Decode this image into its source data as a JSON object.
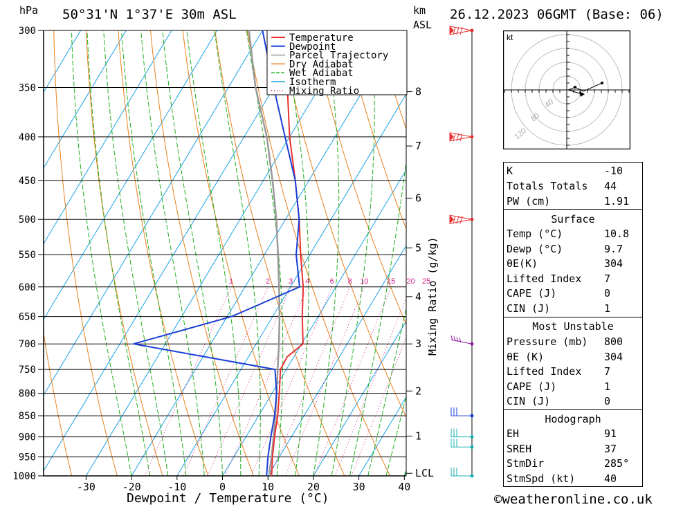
{
  "header": {
    "pressure_unit": "hPa",
    "location": "50°31'N  1°37'E  30m  ASL",
    "km_label": "km",
    "asl_label": "ASL",
    "datetime": "26.12.2023  06GMT  (Base: 06)"
  },
  "footer": {
    "credit": "©weatheronline.co.uk"
  },
  "hodograph": {
    "unit": "kt",
    "ring_labels": [
      "40",
      "80",
      "120"
    ]
  },
  "colors": {
    "temperature": "#e83030",
    "dewpoint": "#1a3fd8",
    "parcel": "#999999",
    "dry_adiabat": "#e8801a",
    "wet_adiabat": "#1fae1f",
    "isotherm": "#1aa0e8",
    "mixing_ratio": "#d0208a",
    "wind_high": "#e83030",
    "wind_mid": "#8a1a9a",
    "wind_low": "#1a3fd8",
    "wind_surface": "#18b0b0"
  },
  "chart_data": {
    "type": "skew-t log-p",
    "xlabel": "Dewpoint / Temperature (°C)",
    "ylabel_left": "hPa",
    "ylabel_right": "Mixing Ratio (g/kg)",
    "pressure_levels": [
      300,
      350,
      400,
      450,
      500,
      550,
      600,
      650,
      700,
      750,
      800,
      850,
      900,
      950,
      1000
    ],
    "temperature_ticks": [
      -30,
      -20,
      -10,
      0,
      10,
      20,
      30,
      40
    ],
    "height_km_ticks": [
      {
        "label": "8",
        "p": 354
      },
      {
        "label": "7",
        "p": 410
      },
      {
        "label": "6",
        "p": 472
      },
      {
        "label": "5",
        "p": 540
      },
      {
        "label": "4",
        "p": 616
      },
      {
        "label": "3",
        "p": 700
      },
      {
        "label": "2",
        "p": 795
      },
      {
        "label": "1",
        "p": 898
      },
      {
        "label": "LCL",
        "p": 993
      }
    ],
    "mixing_ratio_labels": [
      "1",
      "2",
      "3",
      "4",
      "6",
      "8",
      "10",
      "15",
      "20",
      "25"
    ],
    "mixing_ratio_values": [
      1,
      2,
      3,
      4,
      6,
      8,
      10,
      15,
      20,
      25
    ],
    "legend": [
      "Temperature",
      "Dewpoint",
      "Parcel Trajectory",
      "Dry Adiabat",
      "Wet Adiabat",
      "Isotherm",
      "Mixing Ratio"
    ],
    "legend_position": "top-right",
    "series": [
      {
        "name": "Temperature",
        "points": [
          [
            1000,
            10.8
          ],
          [
            950,
            8.5
          ],
          [
            900,
            6.3
          ],
          [
            850,
            4.2
          ],
          [
            800,
            1.6
          ],
          [
            750,
            -1.3
          ],
          [
            725,
            -1.5
          ],
          [
            700,
            0.3
          ],
          [
            650,
            -3.5
          ],
          [
            600,
            -7.2
          ],
          [
            550,
            -12
          ],
          [
            500,
            -17
          ],
          [
            450,
            -23
          ],
          [
            400,
            -30
          ],
          [
            350,
            -37
          ],
          [
            300,
            -45
          ]
        ]
      },
      {
        "name": "Dewpoint",
        "points": [
          [
            1000,
            9.7
          ],
          [
            950,
            7.5
          ],
          [
            900,
            5.5
          ],
          [
            850,
            3.5
          ],
          [
            800,
            1.0
          ],
          [
            750,
            -2.5
          ],
          [
            700,
            -37
          ],
          [
            650,
            -19
          ],
          [
            600,
            -8
          ],
          [
            550,
            -13
          ],
          [
            500,
            -17
          ],
          [
            450,
            -23
          ],
          [
            400,
            -31
          ],
          [
            350,
            -40
          ],
          [
            300,
            -50
          ]
        ]
      },
      {
        "name": "Parcel Trajectory",
        "points": [
          [
            1000,
            10.8
          ],
          [
            990,
            9.8
          ],
          [
            950,
            8.3
          ],
          [
            900,
            6.1
          ],
          [
            850,
            3.7
          ],
          [
            800,
            1.0
          ],
          [
            750,
            -1.9
          ],
          [
            700,
            -5
          ],
          [
            650,
            -8.5
          ],
          [
            600,
            -12.5
          ],
          [
            550,
            -17
          ],
          [
            500,
            -22
          ],
          [
            450,
            -28
          ],
          [
            400,
            -35
          ],
          [
            350,
            -44
          ],
          [
            300,
            -53
          ]
        ]
      }
    ],
    "wind_barbs": [
      {
        "p": 300,
        "color": "wind_high"
      },
      {
        "p": 400,
        "color": "wind_high"
      },
      {
        "p": 500,
        "color": "wind_high"
      },
      {
        "p": 700,
        "color": "wind_mid"
      },
      {
        "p": 850,
        "color": "wind_low"
      },
      {
        "p": 900,
        "color": "wind_surface"
      },
      {
        "p": 925,
        "color": "wind_surface"
      },
      {
        "p": 1000,
        "color": "wind_surface"
      }
    ]
  },
  "indices": {
    "k_label": "K",
    "k_value": "-10",
    "tt_label": "Totals Totals",
    "tt_value": "44",
    "pw_label": "PW (cm)",
    "pw_value": "1.91"
  },
  "surface": {
    "title": "Surface",
    "rows": [
      {
        "label": "Temp (°C)",
        "value": "10.8"
      },
      {
        "label": "Dewp (°C)",
        "value": "9.7"
      },
      {
        "label": "θE(K)",
        "value": "304"
      },
      {
        "label": "Lifted Index",
        "value": "7"
      },
      {
        "label": "CAPE (J)",
        "value": "0"
      },
      {
        "label": "CIN (J)",
        "value": "1"
      }
    ]
  },
  "most_unstable": {
    "title": "Most Unstable",
    "rows": [
      {
        "label": "Pressure (mb)",
        "value": "800"
      },
      {
        "label": "θE (K)",
        "value": "304"
      },
      {
        "label": "Lifted Index",
        "value": "7"
      },
      {
        "label": "CAPE (J)",
        "value": "1"
      },
      {
        "label": "CIN (J)",
        "value": "0"
      }
    ]
  },
  "hodograph_stats": {
    "title": "Hodograph",
    "rows": [
      {
        "label": "EH",
        "value": "91"
      },
      {
        "label": "SREH",
        "value": "37"
      },
      {
        "label": "StmDir",
        "value": "285°"
      },
      {
        "label": "StmSpd (kt)",
        "value": "40"
      }
    ]
  }
}
